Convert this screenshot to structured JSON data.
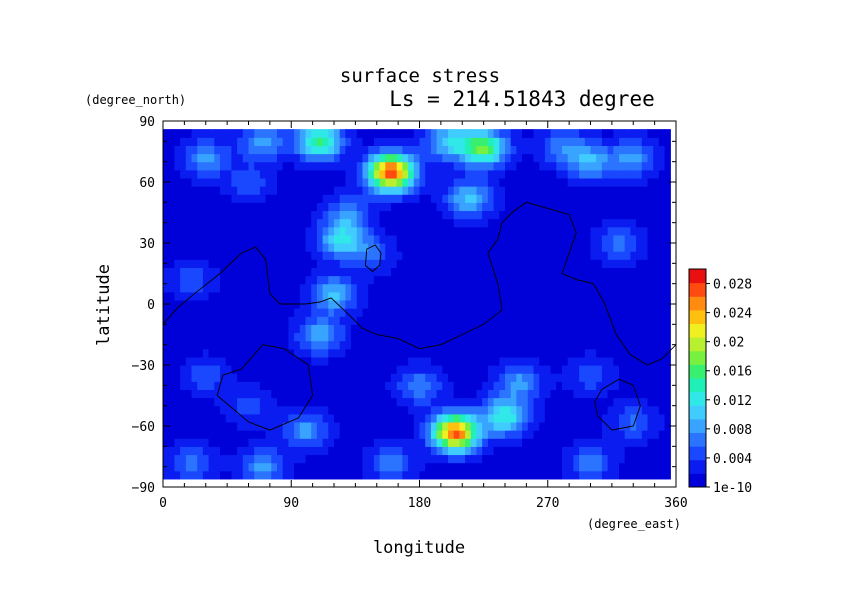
{
  "chart_data": {
    "type": "heatmap",
    "title": "surface stress",
    "subtitle": "Ls = 214.51843 degree",
    "xlabel": "longitude",
    "ylabel": "latitude",
    "x_units": "(degree_east)",
    "y_units": "(degree_north)",
    "xlim": [
      0,
      360
    ],
    "ylim": [
      -90,
      90
    ],
    "x_ticks": [
      0,
      90,
      180,
      270,
      360
    ],
    "y_ticks": [
      -90,
      -60,
      -30,
      0,
      30,
      60,
      90
    ],
    "x_tick_labels": [
      "0",
      "90",
      "180",
      "270",
      "360"
    ],
    "y_tick_labels": [
      "−90",
      "−60",
      "−30",
      "0",
      "30",
      "60",
      "90"
    ],
    "data_lat_range": [
      -86,
      86
    ],
    "data_lon_range": [
      0,
      356
    ],
    "colorbar": {
      "min": 0,
      "max": 0.03,
      "tick_values": [
        0,
        0.004,
        0.008,
        0.012,
        0.016,
        0.02,
        0.024,
        0.028
      ],
      "tick_labels": [
        "1e-10",
        "0.004",
        "0.008",
        "0.012",
        "0.016",
        "0.02",
        "0.024",
        "0.028"
      ],
      "colors": [
        "#0000d8",
        "#0a1cf0",
        "#1a48ff",
        "#2a74ff",
        "#38a4ff",
        "#40ccff",
        "#30e8e8",
        "#20f0b8",
        "#38f070",
        "#78f040",
        "#b8f030",
        "#f0f020",
        "#ffc010",
        "#ff8c10",
        "#ff4a10",
        "#e81010"
      ]
    },
    "field": {
      "base_value": 0.001,
      "features": [
        {
          "lon": 110,
          "lat": 80,
          "value": 0.014
        },
        {
          "lon": 160,
          "lat": 65,
          "value": 0.027
        },
        {
          "lon": 225,
          "lat": 77,
          "value": 0.016
        },
        {
          "lon": 200,
          "lat": 80,
          "value": 0.009
        },
        {
          "lon": 70,
          "lat": 80,
          "value": 0.007
        },
        {
          "lon": 30,
          "lat": 72,
          "value": 0.007
        },
        {
          "lon": 300,
          "lat": 70,
          "value": 0.008
        },
        {
          "lon": 330,
          "lat": 72,
          "value": 0.007
        },
        {
          "lon": 280,
          "lat": 78,
          "value": 0.006
        },
        {
          "lon": 130,
          "lat": 45,
          "value": 0.006
        },
        {
          "lon": 215,
          "lat": 52,
          "value": 0.009
        },
        {
          "lon": 125,
          "lat": 32,
          "value": 0.01
        },
        {
          "lon": 120,
          "lat": 5,
          "value": 0.009
        },
        {
          "lon": 110,
          "lat": -15,
          "value": 0.008
        },
        {
          "lon": 145,
          "lat": 25,
          "value": 0.005
        },
        {
          "lon": 60,
          "lat": 60,
          "value": 0.004
        },
        {
          "lon": 20,
          "lat": 12,
          "value": 0.004
        },
        {
          "lon": 320,
          "lat": 30,
          "value": 0.005
        },
        {
          "lon": 205,
          "lat": -63,
          "value": 0.026
        },
        {
          "lon": 240,
          "lat": -55,
          "value": 0.012
        },
        {
          "lon": 180,
          "lat": -40,
          "value": 0.006
        },
        {
          "lon": 250,
          "lat": -38,
          "value": 0.007
        },
        {
          "lon": 100,
          "lat": -62,
          "value": 0.007
        },
        {
          "lon": 60,
          "lat": -50,
          "value": 0.004
        },
        {
          "lon": 30,
          "lat": -35,
          "value": 0.004
        },
        {
          "lon": 330,
          "lat": -58,
          "value": 0.005
        },
        {
          "lon": 300,
          "lat": -35,
          "value": 0.004
        },
        {
          "lon": 70,
          "lat": -80,
          "value": 0.007
        },
        {
          "lon": 160,
          "lat": -78,
          "value": 0.006
        },
        {
          "lon": 300,
          "lat": -78,
          "value": 0.006
        },
        {
          "lon": 20,
          "lat": -78,
          "value": 0.005
        }
      ]
    },
    "contours": [
      {
        "closed": false,
        "points": [
          [
            0,
            -10
          ],
          [
            10,
            -2
          ],
          [
            22,
            5
          ],
          [
            40,
            15
          ],
          [
            55,
            25
          ],
          [
            65,
            28
          ],
          [
            72,
            22
          ],
          [
            75,
            5
          ],
          [
            82,
            0
          ],
          [
            100,
            0
          ],
          [
            110,
            1
          ],
          [
            118,
            3
          ],
          [
            130,
            -5
          ],
          [
            140,
            -12
          ],
          [
            150,
            -15
          ],
          [
            165,
            -17
          ],
          [
            180,
            -22
          ],
          [
            195,
            -20
          ],
          [
            210,
            -15
          ],
          [
            225,
            -10
          ],
          [
            238,
            -3
          ],
          [
            235,
            10
          ],
          [
            228,
            25
          ],
          [
            235,
            32
          ],
          [
            238,
            40
          ],
          [
            245,
            45
          ],
          [
            255,
            50
          ],
          [
            270,
            47
          ],
          [
            285,
            44
          ],
          [
            290,
            35
          ],
          [
            285,
            25
          ],
          [
            280,
            15
          ],
          [
            290,
            12
          ],
          [
            302,
            10
          ],
          [
            310,
            0
          ],
          [
            318,
            -15
          ],
          [
            328,
            -25
          ],
          [
            340,
            -30
          ],
          [
            350,
            -27
          ],
          [
            360,
            -20
          ]
        ]
      },
      {
        "closed": true,
        "points": [
          [
            143,
            27
          ],
          [
            149,
            29
          ],
          [
            153,
            25
          ],
          [
            152,
            19
          ],
          [
            147,
            16
          ],
          [
            142,
            19
          ]
        ]
      },
      {
        "closed": true,
        "points": [
          [
            55,
            -32
          ],
          [
            70,
            -20
          ],
          [
            85,
            -22
          ],
          [
            102,
            -30
          ],
          [
            105,
            -45
          ],
          [
            95,
            -56
          ],
          [
            75,
            -62
          ],
          [
            60,
            -58
          ],
          [
            38,
            -45
          ],
          [
            42,
            -35
          ]
        ]
      },
      {
        "closed": true,
        "points": [
          [
            308,
            -42
          ],
          [
            320,
            -37
          ],
          [
            330,
            -40
          ],
          [
            335,
            -50
          ],
          [
            330,
            -60
          ],
          [
            315,
            -62
          ],
          [
            305,
            -55
          ],
          [
            303,
            -48
          ]
        ]
      }
    ]
  }
}
